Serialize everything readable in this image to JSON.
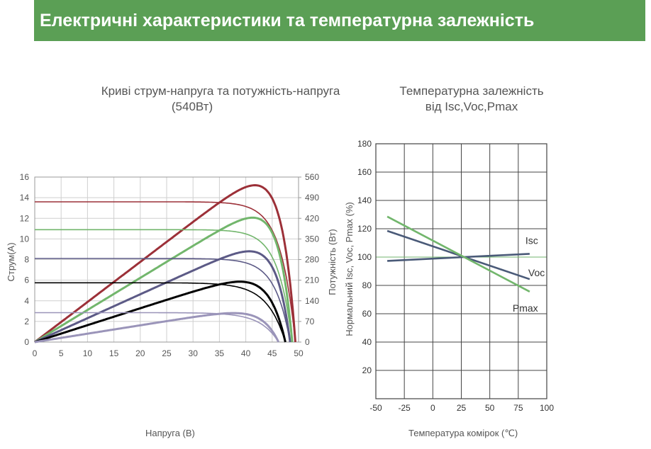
{
  "banner_title": "Електричні характеристики та температурна залежність",
  "left_caption": {
    "line1": "Криві струм-напруга та потужність-напруга",
    "line2": "(540Вт)"
  },
  "right_caption": {
    "line1": "Температурна залежність",
    "line2": "від Isc,Voc,Pmax"
  },
  "colors": {
    "banner": "#5b9f55",
    "red": "#9c3038",
    "green": "#72b66c",
    "purple": "#5c5a86",
    "black": "#000000",
    "lavender": "#9a94b9",
    "gray": "#8a8a8a",
    "navy": "#4a5a78"
  },
  "chart_data": [
    {
      "type": "line",
      "xlabel": "Напруга (В)",
      "ylabel": "Струм(А)",
      "y2label": "Потужність (Вт)",
      "xlim": [
        0,
        50
      ],
      "ylim": [
        0,
        16
      ],
      "y2lim": [
        0,
        560
      ],
      "x_ticks": [
        "0",
        "5",
        "10",
        "15",
        "20",
        "25",
        "30",
        "35",
        "40",
        "45",
        "50"
      ],
      "y_ticks": [
        "0",
        "2",
        "4",
        "6",
        "8",
        "10",
        "12",
        "14",
        "16"
      ],
      "y2_ticks": [
        "0",
        "70",
        "140",
        "210",
        "280",
        "350",
        "420",
        "490",
        "560"
      ],
      "grid": true,
      "series": [
        {
          "color": "#9c3038",
          "isc": 13.6,
          "voc": 49.4,
          "vmp": 41.0,
          "imp": 12.95,
          "pmax": 531
        },
        {
          "color": "#72b66c",
          "isc": 10.9,
          "voc": 48.8,
          "vmp": 41.0,
          "imp": 10.3,
          "pmax": 422
        },
        {
          "color": "#5c5a86",
          "isc": 8.1,
          "voc": 48.4,
          "vmp": 40.5,
          "imp": 7.6,
          "pmax": 308
        },
        {
          "color": "#000000",
          "isc": 5.75,
          "voc": 47.5,
          "vmp": 40.5,
          "imp": 5.0,
          "pmax": 202
        },
        {
          "color": "#9a94b9",
          "isc": 2.85,
          "voc": 46.2,
          "vmp": 38.5,
          "imp": 2.55,
          "pmax": 98
        }
      ]
    },
    {
      "type": "line",
      "xlabel": "Температура комірок (℃)",
      "ylabel": "Нормальний Isc, Voc, Pmax (%)",
      "xlim": [
        -50,
        100
      ],
      "ylim": [
        0,
        180
      ],
      "x_ticks": [
        "-50",
        "-25",
        "0",
        "25",
        "50",
        "75",
        "100"
      ],
      "y_ticks": [
        "20",
        "40",
        "60",
        "80",
        "100",
        "120",
        "140",
        "160",
        "180"
      ],
      "grid": true,
      "series": [
        {
          "name": "Isc",
          "color": "#4a5a78",
          "x": [
            -40,
            85
          ],
          "y": [
            97.3,
            102.3
          ]
        },
        {
          "name": "Voc",
          "color": "#4a5a78",
          "x": [
            -40,
            85
          ],
          "y": [
            118.5,
            84.4
          ]
        },
        {
          "name": "Pmax",
          "color": "#72b66c",
          "x": [
            -40,
            85
          ],
          "y": [
            128.6,
            75.6
          ]
        }
      ]
    }
  ]
}
